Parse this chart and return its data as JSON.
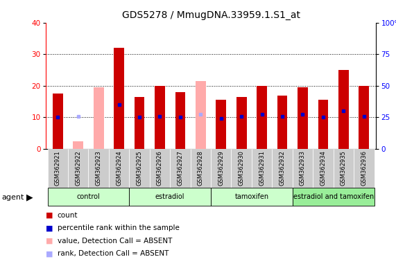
{
  "title": "GDS5278 / MmugDNA.33959.1.S1_at",
  "samples": [
    "GSM362921",
    "GSM362922",
    "GSM362923",
    "GSM362924",
    "GSM362925",
    "GSM362926",
    "GSM362927",
    "GSM362928",
    "GSM362929",
    "GSM362930",
    "GSM362931",
    "GSM362932",
    "GSM362933",
    "GSM362934",
    "GSM362935",
    "GSM362936"
  ],
  "count_values": [
    17.5,
    null,
    null,
    32.0,
    16.5,
    20.0,
    18.0,
    null,
    15.5,
    16.5,
    20.0,
    17.0,
    19.5,
    15.5,
    25.0,
    20.0
  ],
  "count_absent": [
    null,
    2.5,
    19.5,
    null,
    null,
    null,
    null,
    21.5,
    null,
    null,
    null,
    null,
    null,
    null,
    null,
    null
  ],
  "rank_values": [
    25.0,
    null,
    null,
    35.0,
    25.0,
    26.0,
    25.0,
    null,
    24.0,
    26.0,
    27.5,
    26.0,
    27.5,
    25.0,
    30.0,
    26.0
  ],
  "rank_absent": [
    null,
    26.0,
    null,
    null,
    null,
    null,
    null,
    27.5,
    null,
    null,
    null,
    null,
    null,
    null,
    null,
    null
  ],
  "groups": [
    {
      "label": "control",
      "start": 0,
      "end": 3
    },
    {
      "label": "estradiol",
      "start": 4,
      "end": 7
    },
    {
      "label": "tamoxifen",
      "start": 8,
      "end": 11
    },
    {
      "label": "estradiol and tamoxifen",
      "start": 12,
      "end": 15
    }
  ],
  "ylim_left": [
    0,
    40
  ],
  "ylim_right": [
    0,
    100
  ],
  "yticks_left": [
    0,
    10,
    20,
    30,
    40
  ],
  "yticks_right": [
    0,
    25,
    50,
    75,
    100
  ],
  "bar_color_count": "#cc0000",
  "bar_color_absent": "#ffaaaa",
  "marker_color_rank": "#0000cc",
  "marker_color_rank_absent": "#aaaaff",
  "background_color": "#ffffff",
  "group_color_light": "#ccffcc",
  "group_color_dark": "#99ee99",
  "sample_cell_color": "#cccccc",
  "agent_label": "agent",
  "legend_labels": [
    "count",
    "percentile rank within the sample",
    "value, Detection Call = ABSENT",
    "rank, Detection Call = ABSENT"
  ]
}
